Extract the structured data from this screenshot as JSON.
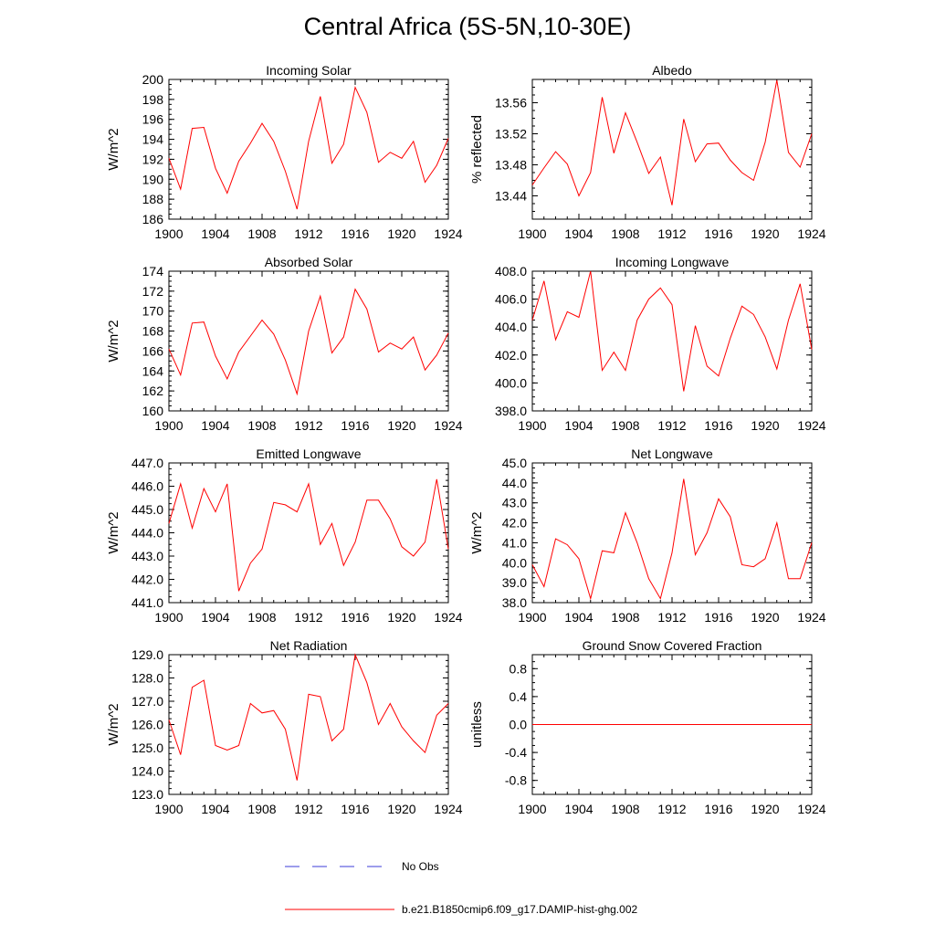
{
  "title": "Central Africa (5S-5N,10-30E)",
  "legend": [
    {
      "label": "No Obs",
      "color": "#3b3bd8",
      "style": "dashed"
    },
    {
      "label": "b.e21.B1850cmip6.f09_g17.DAMIP-hist-ghg.002",
      "color": "#ff0000",
      "style": "solid"
    }
  ],
  "chart_data": [
    {
      "type": "line",
      "title": "Incoming Solar",
      "ylabel": "W/m^2",
      "xlim": [
        1900,
        1924
      ],
      "xticks": [
        1900,
        1904,
        1908,
        1912,
        1916,
        1920,
        1924
      ],
      "ylim": [
        186,
        200
      ],
      "yticks": [
        186,
        188,
        190,
        192,
        194,
        196,
        198,
        200
      ],
      "ydecimals": 0,
      "x": [
        1900,
        1901,
        1902,
        1903,
        1904,
        1905,
        1906,
        1907,
        1908,
        1909,
        1910,
        1911,
        1912,
        1913,
        1914,
        1915,
        1916,
        1917,
        1918,
        1919,
        1920,
        1921,
        1922,
        1923,
        1924
      ],
      "series": [
        {
          "name": "b.e21.B1850cmip6.f09_g17.DAMIP-hist-ghg.002",
          "values": [
            192.1,
            189.0,
            195.1,
            195.2,
            191.1,
            188.6,
            191.8,
            193.6,
            195.6,
            193.8,
            190.8,
            187.0,
            193.8,
            198.3,
            191.6,
            193.5,
            199.2,
            196.7,
            191.7,
            192.7,
            192.1,
            193.8,
            189.7,
            191.4,
            194.1
          ]
        }
      ]
    },
    {
      "type": "line",
      "title": "Albedo",
      "ylabel": "% reflected",
      "xlim": [
        1900,
        1924
      ],
      "xticks": [
        1900,
        1904,
        1908,
        1912,
        1916,
        1920,
        1924
      ],
      "ylim": [
        13.41,
        13.59
      ],
      "yticks": [
        13.44,
        13.48,
        13.52,
        13.56
      ],
      "ydecimals": 2,
      "x": [
        1900,
        1901,
        1902,
        1903,
        1904,
        1905,
        1906,
        1907,
        1908,
        1909,
        1910,
        1911,
        1912,
        1913,
        1914,
        1915,
        1916,
        1917,
        1918,
        1919,
        1920,
        1921,
        1922,
        1923,
        1924
      ],
      "series": [
        {
          "name": "b.e21.B1850cmip6.f09_g17.DAMIP-hist-ghg.002",
          "values": [
            13.454,
            13.476,
            13.497,
            13.481,
            13.44,
            13.47,
            13.567,
            13.495,
            13.547,
            13.509,
            13.469,
            13.49,
            13.428,
            13.539,
            13.484,
            13.507,
            13.508,
            13.486,
            13.47,
            13.46,
            13.509,
            13.589,
            13.496,
            13.477,
            13.52
          ]
        }
      ]
    },
    {
      "type": "line",
      "title": "Absorbed Solar",
      "ylabel": "W/m^2",
      "xlim": [
        1900,
        1924
      ],
      "xticks": [
        1900,
        1904,
        1908,
        1912,
        1916,
        1920,
        1924
      ],
      "ylim": [
        160,
        174
      ],
      "yticks": [
        160,
        162,
        164,
        166,
        168,
        170,
        172,
        174
      ],
      "ydecimals": 0,
      "x": [
        1900,
        1901,
        1902,
        1903,
        1904,
        1905,
        1906,
        1907,
        1908,
        1909,
        1910,
        1911,
        1912,
        1913,
        1914,
        1915,
        1916,
        1917,
        1918,
        1919,
        1920,
        1921,
        1922,
        1923,
        1924
      ],
      "series": [
        {
          "name": "b.e21.B1850cmip6.f09_g17.DAMIP-hist-ghg.002",
          "values": [
            166.2,
            163.6,
            168.8,
            168.9,
            165.5,
            163.2,
            165.9,
            167.5,
            169.1,
            167.7,
            165.1,
            161.7,
            168.0,
            171.5,
            165.8,
            167.4,
            172.2,
            170.2,
            165.9,
            166.8,
            166.2,
            167.4,
            164.1,
            165.6,
            167.8
          ]
        }
      ]
    },
    {
      "type": "line",
      "title": "Incoming Longwave",
      "ylabel": "",
      "xlim": [
        1900,
        1924
      ],
      "xticks": [
        1900,
        1904,
        1908,
        1912,
        1916,
        1920,
        1924
      ],
      "ylim": [
        398,
        408
      ],
      "yticks": [
        398,
        400,
        402,
        404,
        406,
        408
      ],
      "ydecimals": 1,
      "x": [
        1900,
        1901,
        1902,
        1903,
        1904,
        1905,
        1906,
        1907,
        1908,
        1909,
        1910,
        1911,
        1912,
        1913,
        1914,
        1915,
        1916,
        1917,
        1918,
        1919,
        1920,
        1921,
        1922,
        1923,
        1924
      ],
      "series": [
        {
          "name": "b.e21.B1850cmip6.f09_g17.DAMIP-hist-ghg.002",
          "values": [
            404.5,
            407.3,
            403.1,
            405.1,
            404.7,
            408.0,
            400.9,
            402.2,
            400.9,
            404.5,
            406.0,
            406.8,
            405.6,
            399.4,
            404.1,
            401.2,
            400.5,
            403.2,
            405.5,
            404.9,
            403.3,
            401.0,
            404.5,
            407.1,
            402.4
          ]
        }
      ]
    },
    {
      "type": "line",
      "title": "Emitted Longwave",
      "ylabel": "W/m^2",
      "xlim": [
        1900,
        1924
      ],
      "xticks": [
        1900,
        1904,
        1908,
        1912,
        1916,
        1920,
        1924
      ],
      "ylim": [
        441,
        447
      ],
      "yticks": [
        441,
        442,
        443,
        444,
        445,
        446,
        447
      ],
      "ydecimals": 1,
      "x": [
        1900,
        1901,
        1902,
        1903,
        1904,
        1905,
        1906,
        1907,
        1908,
        1909,
        1910,
        1911,
        1912,
        1913,
        1914,
        1915,
        1916,
        1917,
        1918,
        1919,
        1920,
        1921,
        1922,
        1923,
        1924
      ],
      "series": [
        {
          "name": "b.e21.B1850cmip6.f09_g17.DAMIP-hist-ghg.002",
          "values": [
            444.4,
            446.1,
            444.2,
            445.9,
            444.9,
            446.1,
            441.5,
            442.7,
            443.3,
            445.3,
            445.2,
            444.9,
            446.1,
            443.5,
            444.4,
            442.6,
            443.6,
            445.4,
            445.4,
            444.6,
            443.4,
            443.0,
            443.6,
            446.3,
            443.3
          ]
        }
      ]
    },
    {
      "type": "line",
      "title": "Net Longwave",
      "ylabel": "W/m^2",
      "xlim": [
        1900,
        1924
      ],
      "xticks": [
        1900,
        1904,
        1908,
        1912,
        1916,
        1920,
        1924
      ],
      "ylim": [
        38,
        45
      ],
      "yticks": [
        38,
        39,
        40,
        41,
        42,
        43,
        44,
        45
      ],
      "ydecimals": 1,
      "x": [
        1900,
        1901,
        1902,
        1903,
        1904,
        1905,
        1906,
        1907,
        1908,
        1909,
        1910,
        1911,
        1912,
        1913,
        1914,
        1915,
        1916,
        1917,
        1918,
        1919,
        1920,
        1921,
        1922,
        1923,
        1924
      ],
      "series": [
        {
          "name": "b.e21.B1850cmip6.f09_g17.DAMIP-hist-ghg.002",
          "values": [
            39.9,
            38.8,
            41.2,
            40.9,
            40.2,
            38.2,
            40.6,
            40.5,
            42.5,
            41.0,
            39.2,
            38.2,
            40.5,
            44.2,
            40.4,
            41.5,
            43.2,
            42.3,
            39.9,
            39.8,
            40.2,
            42.0,
            39.2,
            39.2,
            41.0
          ]
        }
      ]
    },
    {
      "type": "line",
      "title": "Net Radiation",
      "ylabel": "W/m^2",
      "xlim": [
        1900,
        1924
      ],
      "xticks": [
        1900,
        1904,
        1908,
        1912,
        1916,
        1920,
        1924
      ],
      "ylim": [
        123,
        129
      ],
      "yticks": [
        123,
        124,
        125,
        126,
        127,
        128,
        129
      ],
      "ydecimals": 1,
      "x": [
        1900,
        1901,
        1902,
        1903,
        1904,
        1905,
        1906,
        1907,
        1908,
        1909,
        1910,
        1911,
        1912,
        1913,
        1914,
        1915,
        1916,
        1917,
        1918,
        1919,
        1920,
        1921,
        1922,
        1923,
        1924
      ],
      "series": [
        {
          "name": "b.e21.B1850cmip6.f09_g17.DAMIP-hist-ghg.002",
          "values": [
            126.2,
            124.7,
            127.6,
            127.9,
            125.1,
            124.9,
            125.1,
            126.9,
            126.5,
            126.6,
            125.8,
            123.6,
            127.3,
            127.2,
            125.3,
            125.8,
            129.0,
            127.8,
            126.0,
            126.9,
            125.9,
            125.3,
            124.8,
            126.4,
            126.9
          ]
        }
      ]
    },
    {
      "type": "line",
      "title": "Ground Snow Covered Fraction",
      "ylabel": "unitless",
      "xlim": [
        1900,
        1924
      ],
      "xticks": [
        1900,
        1904,
        1908,
        1912,
        1916,
        1920,
        1924
      ],
      "ylim": [
        -1.0,
        1.0
      ],
      "yticks": [
        -0.8,
        -0.4,
        0.0,
        0.4,
        0.8
      ],
      "ydecimals": 1,
      "x": [
        1900,
        1901,
        1902,
        1903,
        1904,
        1905,
        1906,
        1907,
        1908,
        1909,
        1910,
        1911,
        1912,
        1913,
        1914,
        1915,
        1916,
        1917,
        1918,
        1919,
        1920,
        1921,
        1922,
        1923,
        1924
      ],
      "series": [
        {
          "name": "b.e21.B1850cmip6.f09_g17.DAMIP-hist-ghg.002",
          "values": [
            0,
            0,
            0,
            0,
            0,
            0,
            0,
            0,
            0,
            0,
            0,
            0,
            0,
            0,
            0,
            0,
            0,
            0,
            0,
            0,
            0,
            0,
            0,
            0,
            0
          ]
        }
      ]
    }
  ]
}
